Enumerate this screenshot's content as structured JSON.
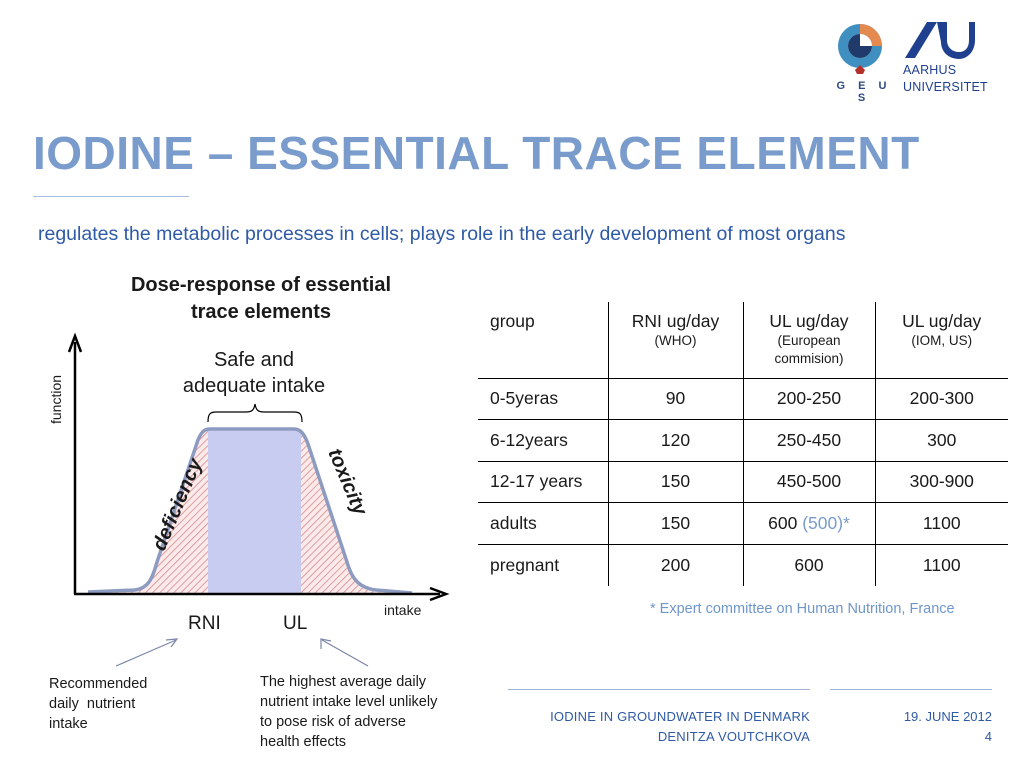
{
  "logos": {
    "geus_text": "G E U S",
    "university_line1": "AARHUS",
    "university_line2": "UNIVERSITET",
    "colors": {
      "geus_blue": "#2e4a82",
      "geus_teal": "#3f8fc0",
      "geus_orange": "#e58a4f",
      "au_blue": "#1f3f8f"
    }
  },
  "slide": {
    "title": "IODINE – ESSENTIAL TRACE ELEMENT",
    "subtitle": "regulates the metabolic processes in cells; plays role in the early development of most organs"
  },
  "chart_data": {
    "type": "area",
    "title_line1": "Dose-response of essential",
    "title_line2": "trace elements",
    "xlabel": "intake",
    "ylabel": "function",
    "annotation_top_line1": "Safe and",
    "annotation_top_line2": "adequate intake",
    "region_left": "deficiency",
    "region_right": "toxicity",
    "x_marker_1": "RNI",
    "x_marker_2": "UL",
    "colors": {
      "hatch": "#d98a8a",
      "safe_fill": "#c8ccf0",
      "curve": "#8d9bc0"
    }
  },
  "notes": {
    "rni_line1": "Recommended",
    "rni_line2": "daily  nutrient",
    "rni_line3": "intake",
    "ul_line1": "The highest average daily",
    "ul_line2": "nutrient intake level unlikely",
    "ul_line3": "to pose risk of adverse",
    "ul_line4": "health effects"
  },
  "table": {
    "headers": [
      {
        "main": "group",
        "sub": ""
      },
      {
        "main": "RNI ug/day",
        "sub": "(WHO)"
      },
      {
        "main": "UL ug/day",
        "sub": "(European commision)"
      },
      {
        "main": "UL ug/day",
        "sub": "(IOM, US)"
      }
    ],
    "rows": [
      {
        "group": "0-5yeras",
        "rni": "90",
        "ul_eu": "200-250",
        "ul_eu_extra": "",
        "ul_us": "200-300"
      },
      {
        "group": "6-12years",
        "rni": "120",
        "ul_eu": "250-450",
        "ul_eu_extra": "",
        "ul_us": "300"
      },
      {
        "group": "12-17 years",
        "rni": "150",
        "ul_eu": "450-500",
        "ul_eu_extra": "",
        "ul_us": "300-900"
      },
      {
        "group": "adults",
        "rni": "150",
        "ul_eu": "600",
        "ul_eu_extra": "(500)*",
        "ul_us": "1100"
      },
      {
        "group": "pregnant",
        "rni": "200",
        "ul_eu": "600",
        "ul_eu_extra": "",
        "ul_us": "1100"
      }
    ],
    "footnote": "* Expert committee on Human Nutrition, France"
  },
  "footer": {
    "line1": "IODINE IN GROUNDWATER IN DENMARK",
    "line2": "DENITZA VOUTCHKOVA",
    "date": "19. JUNE 2012",
    "page": "4"
  }
}
